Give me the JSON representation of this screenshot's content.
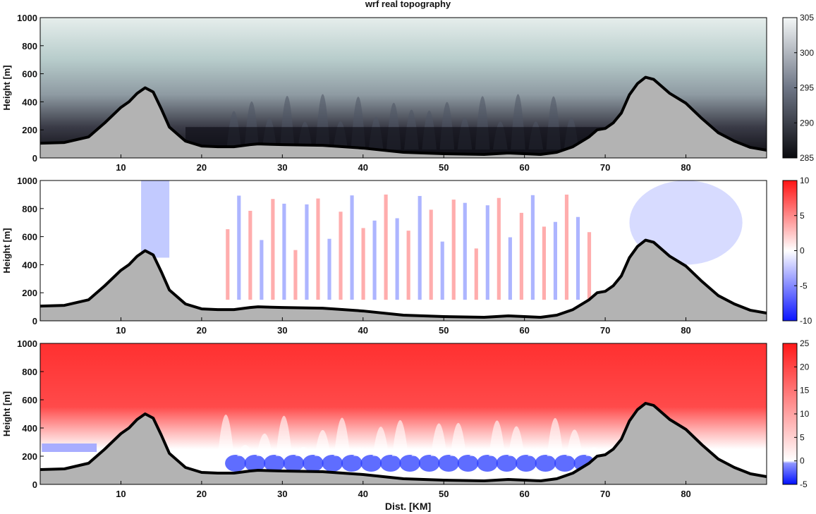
{
  "chart_data": {
    "title": "wrf real topography",
    "xlabel": "Dist. [KM]",
    "xticks": [
      10,
      20,
      30,
      40,
      50,
      60,
      70,
      80
    ],
    "xlim": [
      0,
      90
    ],
    "panels": [
      {
        "type": "heatmap",
        "ylabel": "Height [m]",
        "ylim": [
          0,
          1000
        ],
        "yticks": [
          0,
          200,
          400,
          600,
          800,
          1000
        ],
        "colorbar": {
          "ticks": [
            285,
            290,
            295,
            300,
            305
          ],
          "range": [
            285,
            305
          ],
          "colormap": "bone"
        },
        "colors": {
          "low": "#0a0a0e",
          "mid": "#6e7686",
          "high": "#f4f7f7"
        }
      },
      {
        "type": "heatmap",
        "ylabel": "Height [m]",
        "ylim": [
          0,
          1000
        ],
        "yticks": [
          0,
          200,
          400,
          600,
          800,
          1000
        ],
        "colorbar": {
          "ticks": [
            -10,
            -5,
            0,
            5,
            10
          ],
          "range": [
            -10,
            10
          ],
          "colormap": "blue-white-red"
        },
        "colors": {
          "low": "#0a14ff",
          "mid": "#ffffff",
          "high": "#ff1414"
        }
      },
      {
        "type": "heatmap",
        "ylabel": "Height [m]",
        "ylim": [
          0,
          1000
        ],
        "yticks": [
          0,
          200,
          400,
          600,
          800,
          1000
        ],
        "colorbar": {
          "ticks": [
            -5,
            0,
            5,
            10,
            15,
            20,
            25
          ],
          "range": [
            -5,
            25
          ],
          "colormap": "blue-white-red"
        },
        "colors": {
          "low": "#0010ff",
          "mid": "#ffffff",
          "high": "#ff1818"
        }
      }
    ],
    "terrain": {
      "color": "#b3b3b3",
      "x": [
        0,
        3,
        6,
        8,
        10,
        11,
        12,
        13,
        14,
        15,
        16,
        18,
        20,
        22,
        24,
        26,
        27,
        28,
        30,
        35,
        40,
        45,
        50,
        55,
        58,
        60,
        62,
        64,
        66,
        68,
        69,
        70,
        71,
        72,
        73,
        74,
        75,
        76,
        77,
        78,
        80,
        82,
        84,
        86,
        88,
        90
      ],
      "y": [
        105,
        110,
        150,
        250,
        360,
        400,
        460,
        500,
        470,
        350,
        220,
        120,
        85,
        80,
        80,
        95,
        100,
        98,
        95,
        90,
        70,
        40,
        30,
        25,
        35,
        30,
        25,
        40,
        80,
        150,
        200,
        210,
        250,
        320,
        450,
        530,
        575,
        560,
        510,
        460,
        390,
        280,
        180,
        120,
        75,
        55
      ]
    }
  }
}
